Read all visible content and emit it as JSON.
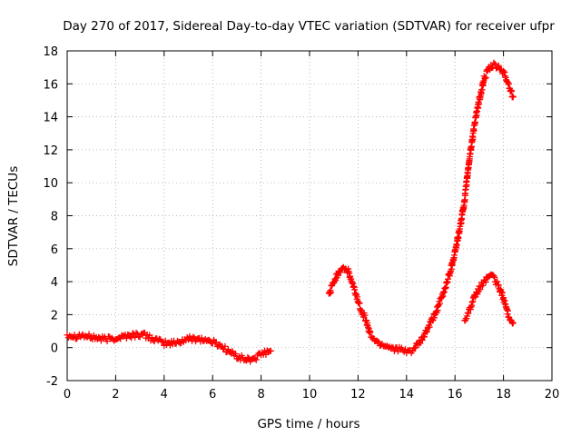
{
  "chart_data": {
    "type": "scatter",
    "title": "Day 270 of 2017, Sidereal Day-to-day VTEC variation (SDTVAR) for receiver ufpr",
    "xlabel": "GPS time / hours",
    "ylabel": "SDTVAR / TECUs",
    "xlim": [
      0,
      20
    ],
    "ylim": [
      -2,
      18
    ],
    "x_ticks": [
      "0",
      "2",
      "4",
      "6",
      "8",
      "10",
      "12",
      "14",
      "16",
      "18",
      "20"
    ],
    "y_ticks": [
      "-2",
      "0",
      "2",
      "4",
      "6",
      "8",
      "10",
      "12",
      "14",
      "16",
      "18"
    ],
    "grid": true,
    "marker": "+",
    "color": "#ff0000",
    "series": [
      {
        "name": "segment-early",
        "points": [
          [
            0.0,
            0.8
          ],
          [
            0.3,
            0.7
          ],
          [
            0.6,
            0.75
          ],
          [
            0.9,
            0.65
          ],
          [
            1.2,
            0.6
          ],
          [
            1.5,
            0.5
          ],
          [
            1.8,
            0.55
          ],
          [
            2.1,
            0.6
          ],
          [
            2.4,
            0.7
          ],
          [
            2.7,
            0.75
          ],
          [
            3.0,
            0.8
          ],
          [
            3.3,
            0.7
          ],
          [
            3.6,
            0.5
          ],
          [
            3.9,
            0.3
          ],
          [
            4.2,
            0.25
          ],
          [
            4.5,
            0.3
          ],
          [
            4.8,
            0.45
          ],
          [
            5.1,
            0.55
          ],
          [
            5.4,
            0.55
          ],
          [
            5.7,
            0.45
          ],
          [
            6.0,
            0.35
          ],
          [
            6.3,
            0.15
          ],
          [
            6.6,
            -0.15
          ],
          [
            6.9,
            -0.45
          ],
          [
            7.2,
            -0.65
          ],
          [
            7.5,
            -0.75
          ],
          [
            7.8,
            -0.6
          ],
          [
            8.1,
            -0.35
          ],
          [
            8.4,
            -0.2
          ]
        ]
      },
      {
        "name": "segment-mid",
        "points": [
          [
            10.8,
            3.2
          ],
          [
            11.0,
            4.0
          ],
          [
            11.2,
            4.6
          ],
          [
            11.4,
            4.9
          ],
          [
            11.6,
            4.6
          ],
          [
            12.1,
            2.4
          ],
          [
            12.3,
            1.8
          ],
          [
            12.5,
            0.8
          ],
          [
            12.8,
            0.3
          ],
          [
            13.1,
            0.15
          ],
          [
            13.4,
            0.0
          ],
          [
            13.7,
            -0.1
          ],
          [
            14.0,
            -0.3
          ],
          [
            14.3,
            -0.1
          ],
          [
            14.6,
            0.4
          ],
          [
            14.9,
            1.2
          ],
          [
            15.2,
            2.1
          ],
          [
            15.5,
            3.2
          ],
          [
            15.8,
            4.6
          ],
          [
            16.0,
            5.8
          ],
          [
            16.2,
            7.2
          ],
          [
            16.4,
            9.0
          ],
          [
            16.6,
            11.5
          ],
          [
            16.8,
            13.5
          ],
          [
            17.0,
            15.0
          ],
          [
            17.2,
            16.3
          ],
          [
            17.4,
            16.9
          ],
          [
            17.6,
            17.1
          ],
          [
            17.8,
            17.0
          ],
          [
            18.0,
            16.7
          ],
          [
            18.2,
            16.0
          ],
          [
            18.4,
            15.2
          ]
        ]
      },
      {
        "name": "segment-late",
        "points": [
          [
            16.4,
            1.7
          ],
          [
            16.6,
            2.3
          ],
          [
            16.8,
            3.0
          ],
          [
            17.0,
            3.6
          ],
          [
            17.2,
            4.0
          ],
          [
            17.4,
            4.4
          ],
          [
            17.6,
            4.2
          ],
          [
            17.8,
            3.7
          ],
          [
            18.0,
            3.0
          ],
          [
            18.2,
            2.0
          ],
          [
            18.4,
            1.5
          ]
        ]
      }
    ]
  }
}
